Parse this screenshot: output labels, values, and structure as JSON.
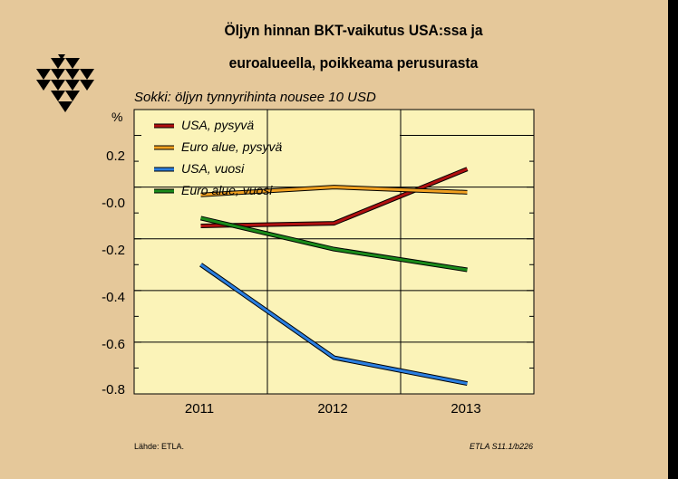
{
  "colors": {
    "background": "#e5c89a",
    "usa_pysyva": "#b01010",
    "euro_pysyva": "#f0a020",
    "usa_vuosi": "#2a7ee0",
    "euro_vuosi": "#1a8a1a"
  },
  "chart_data": {
    "type": "line",
    "title_line1": "Öljyn hinnan BKT-vaikutus USA:ssa ja",
    "title_line2": "euroalueella, poikkeama perusurasta",
    "subtitle": "Sokki: öljyn tynnyrihinta nousee 10 USD",
    "ylabel": "%",
    "categories": [
      "2011",
      "2012",
      "2013"
    ],
    "ylim": [
      -0.8,
      0.3
    ],
    "yticks": [
      "0.2",
      "-0.0",
      "-0.2",
      "-0.4",
      "-0.6",
      "-0.8"
    ],
    "grid": true,
    "legend_position": "top-left",
    "series": [
      {
        "name": "USA, pysyvä",
        "color_key": "usa_pysyva",
        "values": [
          -0.15,
          -0.14,
          0.07
        ]
      },
      {
        "name": "Euro alue, pysyvä",
        "color_key": "euro_pysyva",
        "values": [
          -0.03,
          0.0,
          -0.02
        ]
      },
      {
        "name": "USA, vuosi",
        "color_key": "usa_vuosi",
        "values": [
          -0.3,
          -0.66,
          -0.76
        ]
      },
      {
        "name": "Euro alue, vuosi",
        "color_key": "euro_vuosi",
        "values": [
          -0.12,
          -0.24,
          -0.32
        ]
      }
    ]
  },
  "footer": {
    "source": "Lähde:   ETLA.",
    "code": "ETLA S11.1/b226"
  },
  "logo": {
    "icon": "etla-triangles-logo"
  }
}
